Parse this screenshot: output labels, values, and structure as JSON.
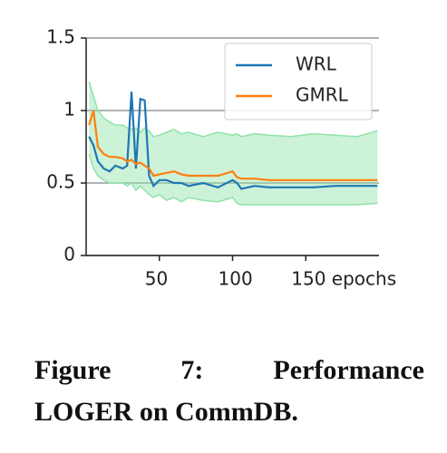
{
  "chart_data": {
    "type": "line",
    "x": [
      2,
      5,
      8,
      12,
      16,
      20,
      25,
      28,
      31,
      34,
      37,
      40,
      43,
      46,
      50,
      55,
      60,
      65,
      70,
      80,
      90,
      100,
      103,
      106,
      115,
      125,
      140,
      155,
      170,
      185,
      199
    ],
    "series": [
      {
        "name": "WRL",
        "color": "#1f77b4",
        "values": [
          0.82,
          0.76,
          0.65,
          0.6,
          0.58,
          0.62,
          0.6,
          0.62,
          1.13,
          0.6,
          1.08,
          1.07,
          0.55,
          0.48,
          0.52,
          0.52,
          0.5,
          0.5,
          0.48,
          0.5,
          0.47,
          0.52,
          0.5,
          0.46,
          0.48,
          0.47,
          0.47,
          0.47,
          0.48,
          0.48,
          0.48
        ]
      },
      {
        "name": "GMRL",
        "color": "#ff7f0e",
        "values": [
          0.9,
          1.0,
          0.75,
          0.7,
          0.68,
          0.68,
          0.67,
          0.65,
          0.66,
          0.63,
          0.64,
          0.62,
          0.6,
          0.55,
          0.56,
          0.57,
          0.58,
          0.56,
          0.55,
          0.55,
          0.55,
          0.58,
          0.54,
          0.53,
          0.53,
          0.52,
          0.52,
          0.52,
          0.52,
          0.52,
          0.52
        ]
      }
    ],
    "band": {
      "color": "#8fe3a8",
      "upper": [
        1.2,
        1.1,
        1.0,
        0.95,
        0.92,
        0.9,
        0.9,
        0.88,
        0.87,
        0.88,
        0.85,
        0.88,
        0.86,
        0.82,
        0.83,
        0.85,
        0.87,
        0.84,
        0.85,
        0.82,
        0.85,
        0.83,
        0.84,
        0.82,
        0.84,
        0.83,
        0.82,
        0.84,
        0.83,
        0.82,
        0.86
      ],
      "lower": [
        0.7,
        0.6,
        0.55,
        0.52,
        0.5,
        0.5,
        0.5,
        0.48,
        0.5,
        0.45,
        0.48,
        0.45,
        0.42,
        0.4,
        0.42,
        0.38,
        0.4,
        0.37,
        0.4,
        0.38,
        0.37,
        0.4,
        0.36,
        0.35,
        0.35,
        0.35,
        0.35,
        0.35,
        0.35,
        0.35,
        0.36
      ]
    },
    "xlim": [
      0,
      200
    ],
    "xticks": [
      50,
      100,
      {
        "value": 150,
        "label": "150 epochs"
      }
    ],
    "ylim": [
      0,
      1.5
    ],
    "yticks": [
      0,
      0.5,
      1,
      1.5
    ],
    "grid": true,
    "legend": "upper right"
  },
  "caption": {
    "lines": [
      "Figure 7: Performance",
      "LOGER on CommDB."
    ]
  }
}
